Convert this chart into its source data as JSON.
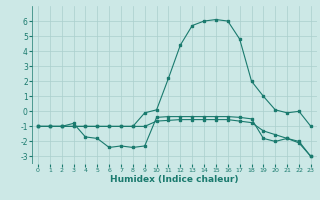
{
  "xlabel": "Humidex (Indice chaleur)",
  "x": [
    0,
    1,
    2,
    3,
    4,
    5,
    6,
    7,
    8,
    9,
    10,
    11,
    12,
    13,
    14,
    15,
    16,
    17,
    18,
    19,
    20,
    21,
    22,
    23
  ],
  "line1": [
    -1,
    -1,
    -1,
    -0.8,
    -1.7,
    -1.8,
    -2.4,
    -2.3,
    -2.4,
    -2.3,
    -0.4,
    -0.35,
    -0.35,
    -0.35,
    -0.35,
    -0.35,
    -0.35,
    -0.4,
    -0.5,
    -1.8,
    -2.0,
    -1.8,
    -2.1,
    -3.0
  ],
  "line2": [
    -1,
    -1,
    -1,
    -1,
    -1,
    -1,
    -1,
    -1,
    -1,
    -1,
    -0.65,
    -0.6,
    -0.55,
    -0.55,
    -0.55,
    -0.55,
    -0.55,
    -0.65,
    -0.75,
    -1.3,
    -1.55,
    -1.8,
    -2.0,
    -3.0
  ],
  "line3": [
    -1,
    -1,
    -1,
    -1,
    -1,
    -1,
    -1,
    -1,
    -1,
    -0.1,
    0.1,
    2.2,
    4.4,
    5.7,
    6.0,
    6.1,
    6.0,
    4.8,
    2.0,
    1.0,
    0.1,
    -0.1,
    0.0,
    -1.0
  ],
  "ylim": [
    -3.5,
    7
  ],
  "xlim": [
    -0.5,
    23.5
  ],
  "yticks": [
    -3,
    -2,
    -1,
    0,
    1,
    2,
    3,
    4,
    5,
    6
  ],
  "xticks": [
    0,
    1,
    2,
    3,
    4,
    5,
    6,
    7,
    8,
    9,
    10,
    11,
    12,
    13,
    14,
    15,
    16,
    17,
    18,
    19,
    20,
    21,
    22,
    23
  ],
  "line_color": "#1a7a6e",
  "bg_color": "#cce8e6",
  "grid_color": "#aacfcd"
}
